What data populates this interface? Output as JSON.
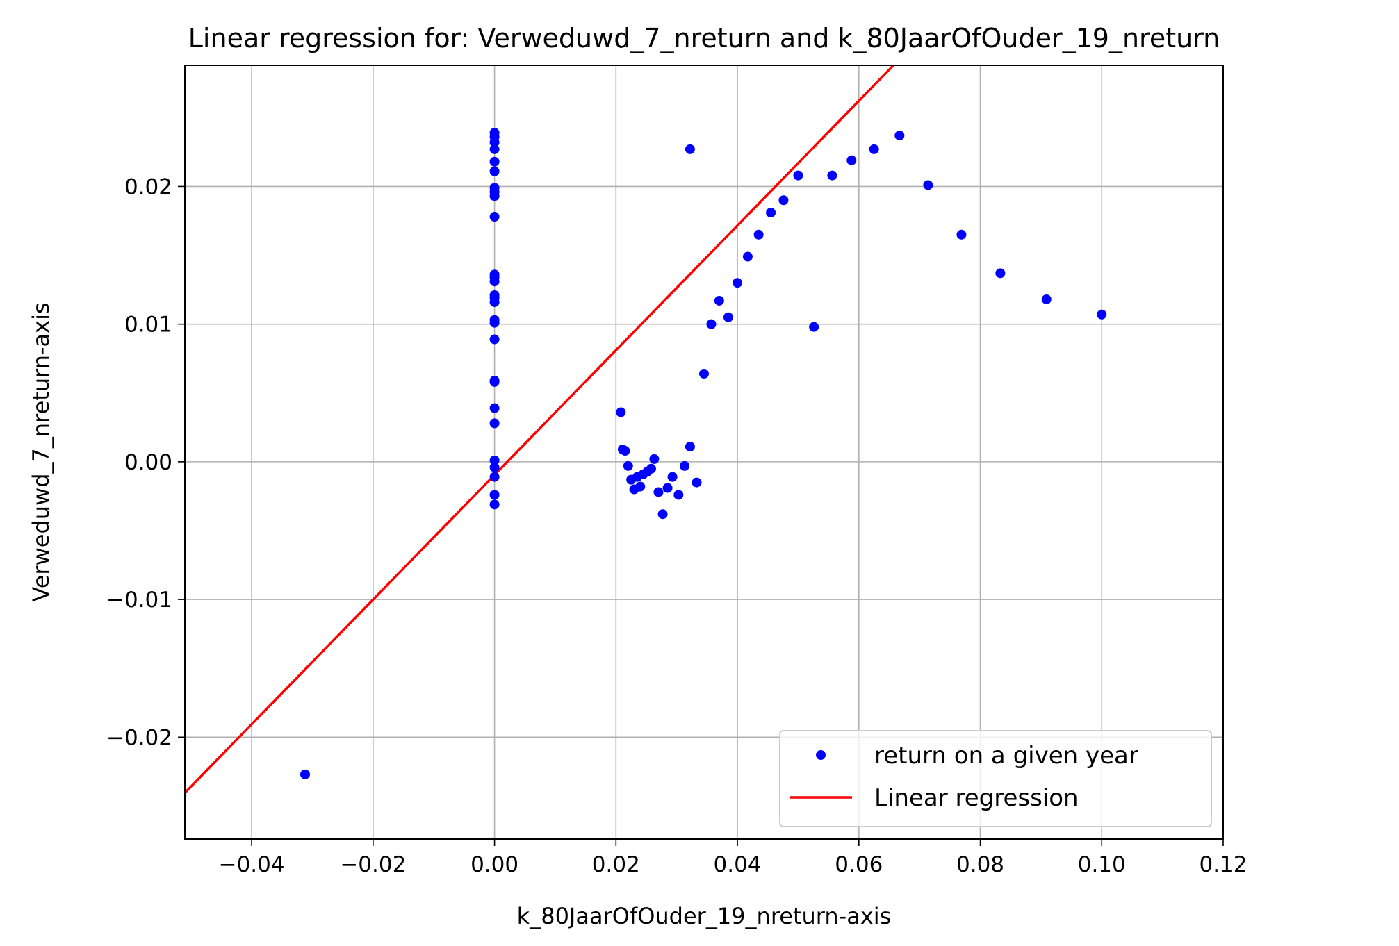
{
  "chart_data": {
    "type": "scatter",
    "title": "Linear regression for: Verweduwd_7_nreturn and k_80JaarOfOuder_19_nreturn",
    "xlabel": "k_80JaarOfOuder_19_nreturn-axis",
    "ylabel": "Verweduwd_7_nreturn-axis",
    "xlim": [
      -0.051,
      0.12
    ],
    "ylim": [
      -0.0274,
      0.0288
    ],
    "grid": true,
    "legend_position": "lower right",
    "x_ticks": [
      -0.04,
      -0.02,
      0.0,
      0.02,
      0.04,
      0.06,
      0.08,
      0.1,
      0.12
    ],
    "x_tick_labels": [
      "−0.04",
      "−0.02",
      "0.00",
      "0.02",
      "0.04",
      "0.06",
      "0.08",
      "0.10",
      "0.12"
    ],
    "y_ticks": [
      -0.02,
      -0.01,
      0.0,
      0.01,
      0.02
    ],
    "y_tick_labels": [
      "−0.02",
      "−0.01",
      "0.00",
      "0.01",
      "0.02"
    ],
    "series": [
      {
        "name": "return on a given year",
        "kind": "scatter",
        "color": "#0000ff",
        "points": [
          [
            0.0,
            0.0239
          ],
          [
            0.0,
            0.0236
          ],
          [
            0.0,
            0.0232
          ],
          [
            0.0,
            0.0227
          ],
          [
            0.0,
            0.0218
          ],
          [
            0.0,
            0.0211
          ],
          [
            0.0,
            0.0199
          ],
          [
            0.0,
            0.0196
          ],
          [
            0.0,
            0.0193
          ],
          [
            0.0,
            0.0178
          ],
          [
            0.0,
            0.0136
          ],
          [
            0.0,
            0.0134
          ],
          [
            0.0,
            0.0131
          ],
          [
            0.0,
            0.0121
          ],
          [
            0.0,
            0.0119
          ],
          [
            0.0,
            0.0116
          ],
          [
            0.0,
            0.0103
          ],
          [
            0.0,
            0.0101
          ],
          [
            0.0,
            0.0089
          ],
          [
            0.0,
            0.0059
          ],
          [
            0.0,
            0.0058
          ],
          [
            0.0,
            0.0039
          ],
          [
            0.0,
            0.0028
          ],
          [
            0.0,
            0.0001
          ],
          [
            0.0,
            -0.0004
          ],
          [
            0.0,
            -0.0011
          ],
          [
            0.0,
            -0.0024
          ],
          [
            0.0,
            -0.0031
          ],
          [
            -0.0312,
            -0.0227
          ],
          [
            0.0208,
            0.0036
          ],
          [
            0.0211,
            0.0009
          ],
          [
            0.0215,
            0.0008
          ],
          [
            0.022,
            -0.0003
          ],
          [
            0.0225,
            -0.0013
          ],
          [
            0.023,
            -0.002
          ],
          [
            0.0235,
            -0.0011
          ],
          [
            0.024,
            -0.0018
          ],
          [
            0.0245,
            -0.0009
          ],
          [
            0.0252,
            -0.0007
          ],
          [
            0.0258,
            -0.0005
          ],
          [
            0.0263,
            0.0002
          ],
          [
            0.027,
            -0.0022
          ],
          [
            0.0277,
            -0.0038
          ],
          [
            0.0285,
            -0.0019
          ],
          [
            0.0293,
            -0.0011
          ],
          [
            0.0303,
            -0.0024
          ],
          [
            0.0313,
            -0.0003
          ],
          [
            0.0322,
            0.0011
          ],
          [
            0.0322,
            0.0227
          ],
          [
            0.0333,
            -0.0015
          ],
          [
            0.0345,
            0.0064
          ],
          [
            0.0357,
            0.01
          ],
          [
            0.037,
            0.0117
          ],
          [
            0.0385,
            0.0105
          ],
          [
            0.04,
            0.013
          ],
          [
            0.0417,
            0.0149
          ],
          [
            0.0435,
            0.0165
          ],
          [
            0.0455,
            0.0181
          ],
          [
            0.0476,
            0.019
          ],
          [
            0.05,
            0.0208
          ],
          [
            0.0526,
            0.0098
          ],
          [
            0.0556,
            0.0208
          ],
          [
            0.0588,
            0.0219
          ],
          [
            0.0625,
            0.0227
          ],
          [
            0.0667,
            0.0237
          ],
          [
            0.0714,
            0.0201
          ],
          [
            0.0769,
            0.0165
          ],
          [
            0.0833,
            0.0137
          ],
          [
            0.0909,
            0.0118
          ],
          [
            0.1,
            0.0107
          ]
        ]
      },
      {
        "name": "Linear regression",
        "kind": "line",
        "color": "#ff0000",
        "slope": 0.4528,
        "intercept": -0.00095
      }
    ]
  }
}
